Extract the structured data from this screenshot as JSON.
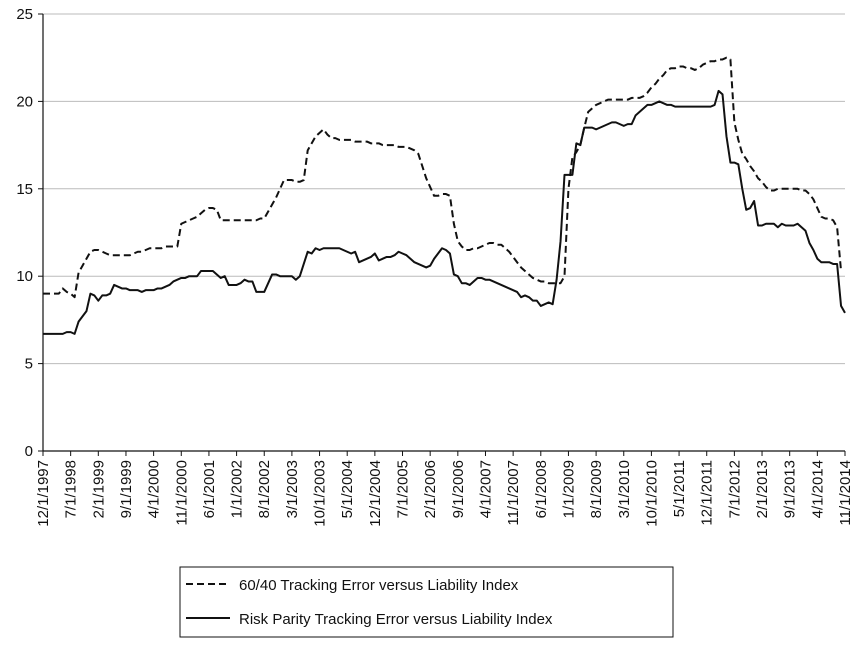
{
  "chart_data": {
    "type": "line",
    "categories": [
      "12/1/1997",
      null,
      null,
      null,
      null,
      null,
      null,
      "7/1/1998",
      null,
      null,
      null,
      null,
      null,
      null,
      "2/1/1999",
      null,
      null,
      null,
      null,
      null,
      null,
      "9/1/1999",
      null,
      null,
      null,
      null,
      null,
      null,
      "4/1/2000",
      null,
      null,
      null,
      null,
      null,
      null,
      "11/1/2000",
      null,
      null,
      null,
      null,
      null,
      null,
      "6/1/2001",
      null,
      null,
      null,
      null,
      null,
      null,
      "1/1/2002",
      null,
      null,
      null,
      null,
      null,
      null,
      "8/1/2002",
      null,
      null,
      null,
      null,
      null,
      null,
      "3/1/2003",
      null,
      null,
      null,
      null,
      null,
      null,
      "10/1/2003",
      null,
      null,
      null,
      null,
      null,
      null,
      "5/1/2004",
      null,
      null,
      null,
      null,
      null,
      null,
      "12/1/2004",
      null,
      null,
      null,
      null,
      null,
      null,
      "7/1/2005",
      null,
      null,
      null,
      null,
      null,
      null,
      "2/1/2006",
      null,
      null,
      null,
      null,
      null,
      null,
      "9/1/2006",
      null,
      null,
      null,
      null,
      null,
      null,
      "4/1/2007",
      null,
      null,
      null,
      null,
      null,
      null,
      "11/1/2007",
      null,
      null,
      null,
      null,
      null,
      null,
      "6/1/2008",
      null,
      null,
      null,
      null,
      null,
      null,
      "1/1/2009",
      null,
      null,
      null,
      null,
      null,
      null,
      "8/1/2009",
      null,
      null,
      null,
      null,
      null,
      null,
      "3/1/2010",
      null,
      null,
      null,
      null,
      null,
      null,
      "10/1/2010",
      null,
      null,
      null,
      null,
      null,
      null,
      "5/1/2011",
      null,
      null,
      null,
      null,
      null,
      null,
      "12/1/2011",
      null,
      null,
      null,
      null,
      null,
      null,
      "7/1/2012",
      null,
      null,
      null,
      null,
      null,
      null,
      "2/1/2013",
      null,
      null,
      null,
      null,
      null,
      null,
      "9/1/2013",
      null,
      null,
      null,
      null,
      null,
      null,
      "4/1/2014",
      null,
      null,
      null,
      null,
      null,
      null,
      "11/1/2014"
    ],
    "series": [
      {
        "name": "60/40 Tracking Error versus Liability Index",
        "color": "#111111",
        "line_style": "dashed",
        "values": [
          9.0,
          9.0,
          9.0,
          9.0,
          9.0,
          9.3,
          9.1,
          9.0,
          8.8,
          10.2,
          10.6,
          11.0,
          11.4,
          11.5,
          11.5,
          11.4,
          11.3,
          11.2,
          11.2,
          11.2,
          11.2,
          11.2,
          11.2,
          11.3,
          11.4,
          11.4,
          11.5,
          11.6,
          11.6,
          11.6,
          11.6,
          11.7,
          11.7,
          11.7,
          11.7,
          13.0,
          13.1,
          13.2,
          13.3,
          13.4,
          13.6,
          13.8,
          13.9,
          13.9,
          13.8,
          13.2,
          13.2,
          13.2,
          13.2,
          13.2,
          13.2,
          13.2,
          13.2,
          13.2,
          13.2,
          13.3,
          13.3,
          13.7,
          14.1,
          14.5,
          15.0,
          15.5,
          15.5,
          15.5,
          15.4,
          15.4,
          15.5,
          17.2,
          17.6,
          18.0,
          18.2,
          18.4,
          18.1,
          17.9,
          17.9,
          17.8,
          17.8,
          17.8,
          17.8,
          17.7,
          17.7,
          17.7,
          17.7,
          17.6,
          17.6,
          17.6,
          17.5,
          17.5,
          17.5,
          17.5,
          17.4,
          17.4,
          17.4,
          17.3,
          17.2,
          17.0,
          16.3,
          15.6,
          15.1,
          14.6,
          14.6,
          14.7,
          14.7,
          14.6,
          13.0,
          12.0,
          11.7,
          11.5,
          11.5,
          11.6,
          11.6,
          11.7,
          11.8,
          11.9,
          11.9,
          11.8,
          11.8,
          11.6,
          11.4,
          11.1,
          10.8,
          10.5,
          10.3,
          10.1,
          9.9,
          9.8,
          9.7,
          9.7,
          9.6,
          9.6,
          9.6,
          9.6,
          10.0,
          15.0,
          16.8,
          17.1,
          17.5,
          18.5,
          19.4,
          19.6,
          19.8,
          19.9,
          20.0,
          20.1,
          20.1,
          20.1,
          20.1,
          20.1,
          20.1,
          20.2,
          20.2,
          20.2,
          20.3,
          20.5,
          20.8,
          21.0,
          21.3,
          21.5,
          21.8,
          21.9,
          21.9,
          22.0,
          22.0,
          21.9,
          21.9,
          21.8,
          21.9,
          22.1,
          22.2,
          22.3,
          22.3,
          22.4,
          22.4,
          22.5,
          22.4,
          18.8,
          17.8,
          17.0,
          16.7,
          16.3,
          16.0,
          15.6,
          15.4,
          15.1,
          14.9,
          14.9,
          15.0,
          15.0,
          15.0,
          15.0,
          15.0,
          15.0,
          14.9,
          14.9,
          14.7,
          14.4,
          13.9,
          13.4,
          13.3,
          13.3,
          13.2,
          12.8,
          10.3,
          null
        ]
      },
      {
        "name": "Risk Parity Tracking Error versus Liability Index",
        "color": "#111111",
        "line_style": "solid",
        "values": [
          6.7,
          6.7,
          6.7,
          6.7,
          6.7,
          6.7,
          6.8,
          6.8,
          6.7,
          7.4,
          7.7,
          8.0,
          9.0,
          8.9,
          8.6,
          8.9,
          8.9,
          9.0,
          9.5,
          9.4,
          9.3,
          9.3,
          9.2,
          9.2,
          9.2,
          9.1,
          9.2,
          9.2,
          9.2,
          9.3,
          9.3,
          9.4,
          9.5,
          9.7,
          9.8,
          9.9,
          9.9,
          10.0,
          10.0,
          10.0,
          10.3,
          10.3,
          10.3,
          10.3,
          10.1,
          9.9,
          10.0,
          9.5,
          9.5,
          9.5,
          9.6,
          9.8,
          9.7,
          9.7,
          9.1,
          9.1,
          9.1,
          9.6,
          10.1,
          10.1,
          10.0,
          10.0,
          10.0,
          10.0,
          9.8,
          10.0,
          10.7,
          11.4,
          11.3,
          11.6,
          11.5,
          11.6,
          11.6,
          11.6,
          11.6,
          11.6,
          11.5,
          11.4,
          11.3,
          11.4,
          10.8,
          10.9,
          11.0,
          11.1,
          11.3,
          10.9,
          11.0,
          11.1,
          11.1,
          11.2,
          11.4,
          11.3,
          11.2,
          11.0,
          10.8,
          10.7,
          10.6,
          10.5,
          10.6,
          11.0,
          11.3,
          11.6,
          11.5,
          11.3,
          10.1,
          10.0,
          9.6,
          9.6,
          9.5,
          9.7,
          9.9,
          9.9,
          9.8,
          9.8,
          9.7,
          9.6,
          9.5,
          9.4,
          9.3,
          9.2,
          9.1,
          8.8,
          8.9,
          8.8,
          8.6,
          8.6,
          8.3,
          8.4,
          8.5,
          8.4,
          9.8,
          12.0,
          15.8,
          15.8,
          15.8,
          17.6,
          17.5,
          18.5,
          18.5,
          18.5,
          18.4,
          18.5,
          18.6,
          18.7,
          18.8,
          18.8,
          18.7,
          18.6,
          18.7,
          18.7,
          19.2,
          19.4,
          19.6,
          19.8,
          19.8,
          19.9,
          20.0,
          19.9,
          19.8,
          19.8,
          19.7,
          19.7,
          19.7,
          19.7,
          19.7,
          19.7,
          19.7,
          19.7,
          19.7,
          19.7,
          19.8,
          20.6,
          20.4,
          18.0,
          16.5,
          16.5,
          16.4,
          15.0,
          13.8,
          13.9,
          14.3,
          12.9,
          12.9,
          13.0,
          13.0,
          13.0,
          12.8,
          13.0,
          12.9,
          12.9,
          12.9,
          13.0,
          12.8,
          12.6,
          11.9,
          11.5,
          11.0,
          10.8,
          10.8,
          10.8,
          10.7,
          10.7,
          8.3,
          7.9
        ]
      }
    ],
    "ylim": [
      0,
      25
    ],
    "yticks": [
      0,
      5,
      10,
      15,
      20,
      25
    ],
    "grid": true,
    "legend": "bottom"
  }
}
